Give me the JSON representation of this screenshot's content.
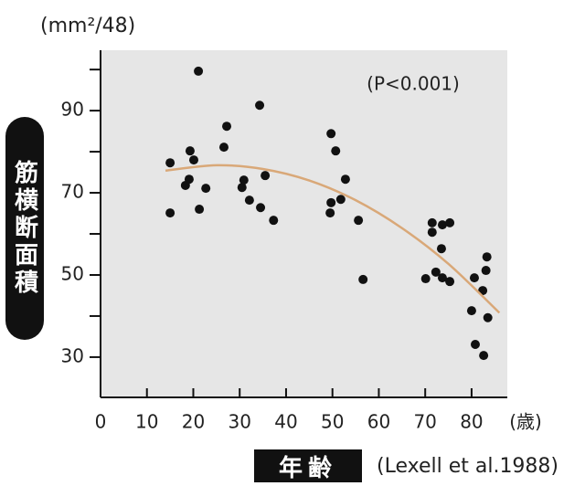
{
  "chart_data": {
    "type": "scatter",
    "y_unit": "(mm²/48)",
    "y_label": "筋横断面積",
    "x_label": "年齢",
    "x_unit": "(歳)",
    "annotation": "(P<0.001)",
    "source": "(Lexell et al.1988)",
    "color": "#111111",
    "x": [
      15,
      15,
      21.1,
      19.3,
      18.3,
      19.1,
      20.1,
      22.7,
      21.3,
      26.6,
      27.2,
      34.3,
      30.5,
      30.9,
      32.1,
      34.5,
      35.5,
      37.3,
      49.7,
      50.7,
      52.8,
      49.7,
      51.8,
      49.5,
      55.6,
      56.6,
      71.5,
      71.5,
      73.7,
      75.3,
      73.5,
      70.1,
      72.3,
      73.7,
      75.3,
      83.3,
      83.1,
      80.6,
      82.4,
      80,
      83.5,
      80.8,
      82.6
    ],
    "values": [
      77.3,
      65.1,
      99.6,
      80.2,
      71.8,
      73.3,
      78,
      71.1,
      66,
      81.1,
      86.2,
      91.3,
      71.3,
      73.1,
      68.2,
      66.4,
      74.2,
      63.3,
      84.4,
      80.2,
      73.3,
      67.6,
      68.4,
      65.1,
      63.3,
      48.9,
      62.7,
      60.4,
      62.2,
      62.7,
      56.4,
      49.1,
      50.7,
      49.3,
      48.4,
      54.4,
      51.1,
      49.3,
      46.2,
      41.3,
      39.6,
      33.1,
      30.4
    ],
    "fit": {
      "color": "#d9a878",
      "x": [
        14,
        25,
        35,
        45,
        55,
        65,
        75,
        86
      ],
      "y": [
        75.4,
        76.7,
        75.8,
        73.0,
        68.2,
        61.4,
        52.7,
        40.8
      ]
    },
    "xlim": [
      0,
      87.7
    ],
    "ylim": [
      20.2,
      104.7
    ],
    "xticks": [
      0,
      10,
      20,
      30,
      40,
      50,
      60,
      70,
      80
    ],
    "yticks": [
      30,
      50,
      70,
      90
    ],
    "yminorticks": [
      40,
      60,
      80,
      100
    ],
    "background": "#e6e6e6"
  }
}
